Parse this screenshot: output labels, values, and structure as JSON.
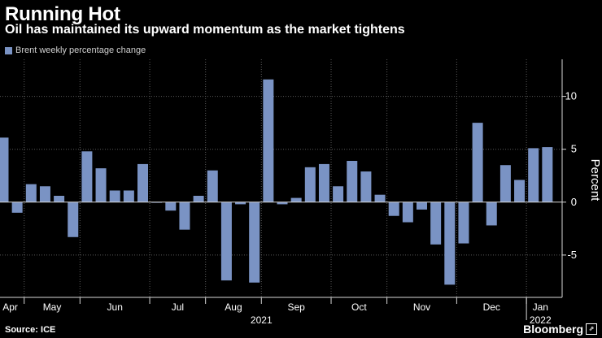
{
  "header": {
    "title": "Running Hot",
    "subtitle": "Oil has maintained its upward momentum as the market tightens"
  },
  "footer": {
    "source": "Source: ICE",
    "brand": "Bloomberg"
  },
  "colors": {
    "bar": "#7a93c4",
    "background": "#000000",
    "grid": "#5a5a5a",
    "text": "#ffffff",
    "subtle_text": "#d0d0d0"
  },
  "chart_data": {
    "type": "bar",
    "title": "Running Hot",
    "subtitle": "Oil has maintained its upward momentum as the market tightens",
    "legend": [
      "Brent weekly percentage change"
    ],
    "legend_position": "top-left",
    "ylabel": "Percent",
    "ylim": [
      -9,
      13.5
    ],
    "yticks": [
      -5,
      0,
      5,
      10
    ],
    "y_axis_side": "right",
    "grid": true,
    "series": [
      {
        "name": "Brent weekly percentage change",
        "values": [
          6.1,
          -1.0,
          1.7,
          1.5,
          0.6,
          -3.3,
          4.8,
          3.2,
          1.1,
          1.1,
          3.6,
          0.0,
          -0.8,
          -2.6,
          0.6,
          3.0,
          -7.4,
          -0.2,
          -7.6,
          11.6,
          -0.2,
          0.4,
          3.3,
          3.6,
          1.5,
          3.9,
          2.9,
          0.7,
          -1.3,
          -1.9,
          -0.7,
          -4.0,
          -7.8,
          -3.9,
          7.5,
          -2.2,
          3.5,
          2.1,
          5.1,
          5.2
        ]
      }
    ],
    "months": [
      {
        "label": "Apr",
        "start": 0,
        "end": 1
      },
      {
        "label": "May",
        "start": 2,
        "end": 5
      },
      {
        "label": "Jun",
        "start": 6,
        "end": 10
      },
      {
        "label": "Jul",
        "start": 11,
        "end": 14
      },
      {
        "label": "Aug",
        "start": 15,
        "end": 18
      },
      {
        "label": "Sep",
        "start": 19,
        "end": 23
      },
      {
        "label": "Oct",
        "start": 24,
        "end": 27
      },
      {
        "label": "Nov",
        "start": 28,
        "end": 32
      },
      {
        "label": "Dec",
        "start": 33,
        "end": 37
      },
      {
        "label": "Jan",
        "start": 38,
        "end": 39
      }
    ],
    "years": [
      {
        "label": "2021",
        "start": 0,
        "end": 37
      },
      {
        "label": "2022",
        "start": 38,
        "end": 39
      }
    ]
  }
}
